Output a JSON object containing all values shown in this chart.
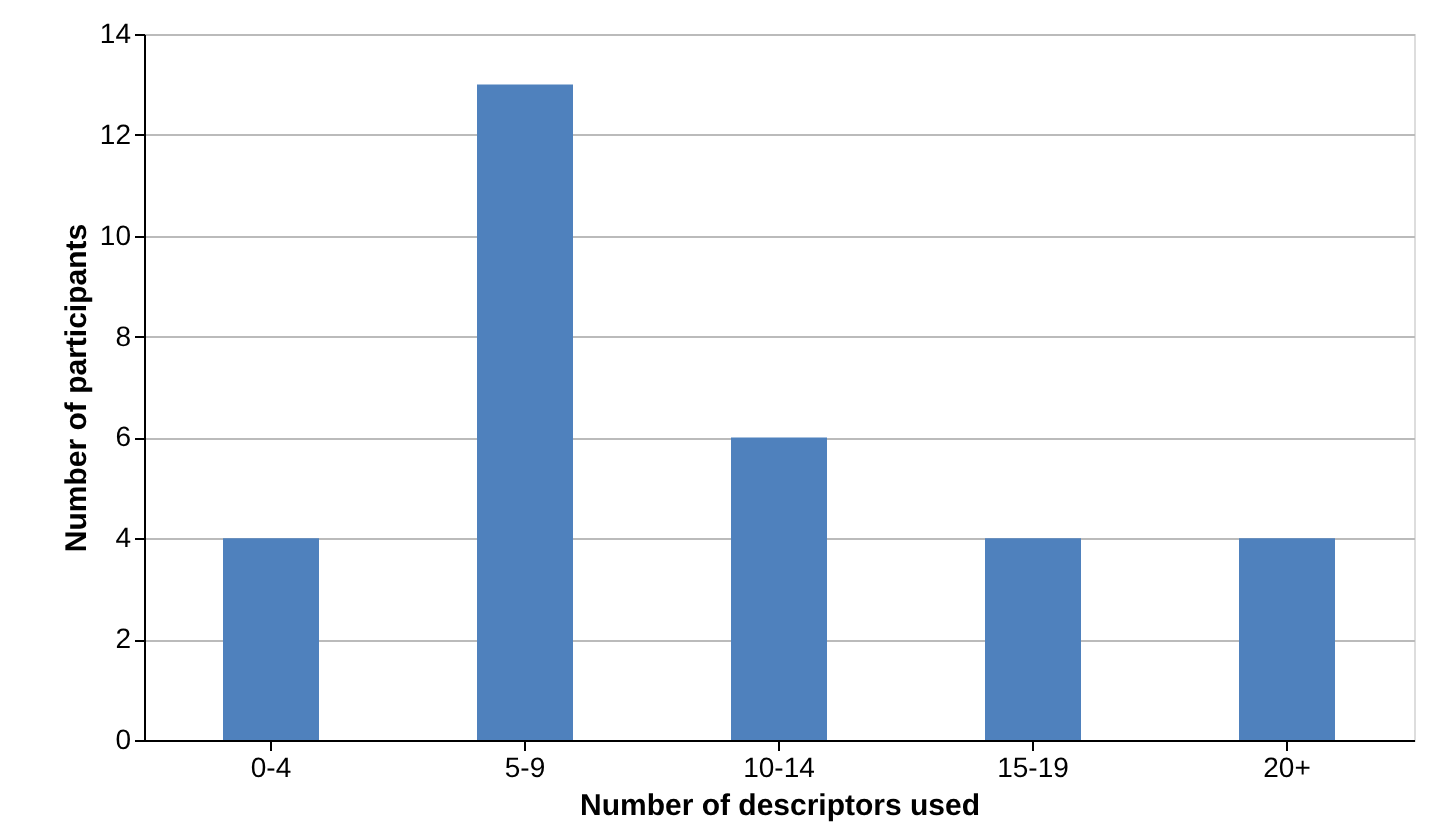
{
  "chart_data": {
    "type": "bar",
    "xlabel": "Number of descriptors used",
    "ylabel": "Number of participants",
    "categories": [
      "0-4",
      "5-9",
      "10-14",
      "15-19",
      "20+"
    ],
    "values": [
      4,
      13,
      6,
      4,
      4
    ],
    "color": "#4f81bd",
    "ylim": [
      0,
      14
    ],
    "yticks": [
      0,
      2,
      4,
      6,
      8,
      10,
      12,
      14
    ],
    "grid": "y"
  }
}
